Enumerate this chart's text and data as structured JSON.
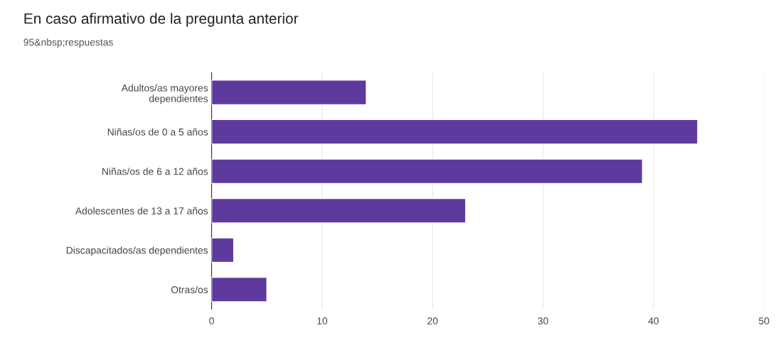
{
  "chart_data": {
    "type": "bar",
    "orientation": "horizontal",
    "title": "En caso afirmativo de la pregunta anterior",
    "subtitle": "95&nbsp;respuestas",
    "categories": [
      "Adultos/as mayores\ndependientes",
      "Niñas/os de 0 a 5 años",
      "Niñas/os de 6 a 12 años",
      "Adolescentes de 13 a 17 años",
      "Discapacitados/as dependientes",
      "Otras/os"
    ],
    "values": [
      14,
      44,
      39,
      23,
      2,
      5
    ],
    "color": "#5e3a9e",
    "xlim": [
      0,
      50
    ],
    "xticks": [
      0,
      10,
      20,
      30,
      40,
      50
    ],
    "grid": "x"
  }
}
